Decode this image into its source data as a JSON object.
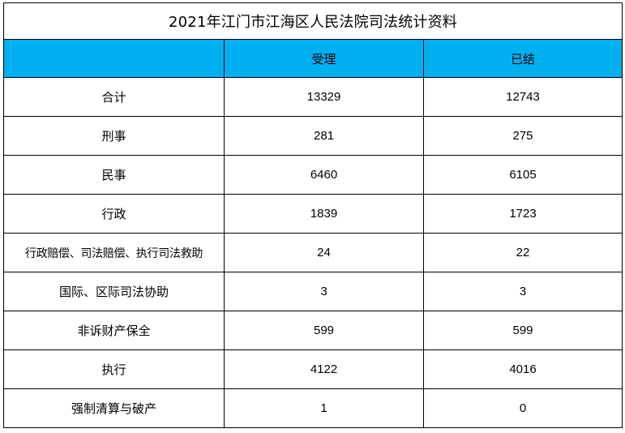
{
  "title": "2021年江门市江海区人民法院司法统计资料",
  "header": {
    "blank": "",
    "col_accepted": "受理",
    "col_concluded": "已结"
  },
  "colors": {
    "header_bg": "#00b0f0",
    "grid": "#000000",
    "background": "#ffffff"
  },
  "rows": [
    {
      "label": "合计",
      "accepted": "13329",
      "concluded": "12743"
    },
    {
      "label": "刑事",
      "accepted": "281",
      "concluded": "275"
    },
    {
      "label": "民事",
      "accepted": "6460",
      "concluded": "6105"
    },
    {
      "label": "行政",
      "accepted": "1839",
      "concluded": "1723"
    },
    {
      "label": "行政赔偿、司法赔偿、执行司法救助",
      "accepted": "24",
      "concluded": "22"
    },
    {
      "label": "国际、区际司法协助",
      "accepted": "3",
      "concluded": "3"
    },
    {
      "label": "非诉财产保全",
      "accepted": "599",
      "concluded": "599"
    },
    {
      "label": "执行",
      "accepted": "4122",
      "concluded": "4016"
    },
    {
      "label": "强制清算与破产",
      "accepted": "1",
      "concluded": "0"
    }
  ]
}
